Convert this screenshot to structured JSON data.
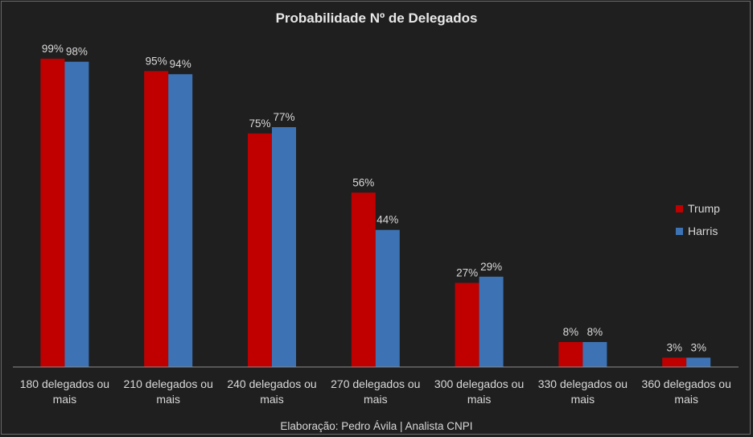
{
  "chart_data": {
    "type": "bar",
    "title": "Probabilidade Nº de Delegados",
    "categories": [
      [
        "180 delegados ou",
        "mais"
      ],
      [
        "210 delegados ou",
        "mais"
      ],
      [
        "240 delegados ou",
        "mais"
      ],
      [
        "270 delegados ou",
        "mais"
      ],
      [
        "300 delegados ou",
        "mais"
      ],
      [
        "330 delegados ou",
        "mais"
      ],
      [
        "360 delegados ou",
        "mais"
      ]
    ],
    "series": [
      {
        "name": "Trump",
        "color": "#c00000",
        "values": [
          99,
          95,
          75,
          56,
          27,
          8,
          3
        ],
        "labels": [
          "99%",
          "95%",
          "75%",
          "56%",
          "27%",
          "8%",
          "3%"
        ]
      },
      {
        "name": "Harris",
        "color": "#3d73b4",
        "values": [
          98,
          94,
          77,
          44,
          29,
          8,
          3
        ],
        "labels": [
          "98%",
          "94%",
          "77%",
          "44%",
          "29%",
          "8%",
          "3%"
        ]
      }
    ],
    "ylim": [
      0,
      100
    ],
    "xlabel": "",
    "ylabel": "",
    "grid": false,
    "legend": "right"
  },
  "footer": {
    "caption": "Elaboração: Pedro Ávila | Analista CNPI"
  }
}
